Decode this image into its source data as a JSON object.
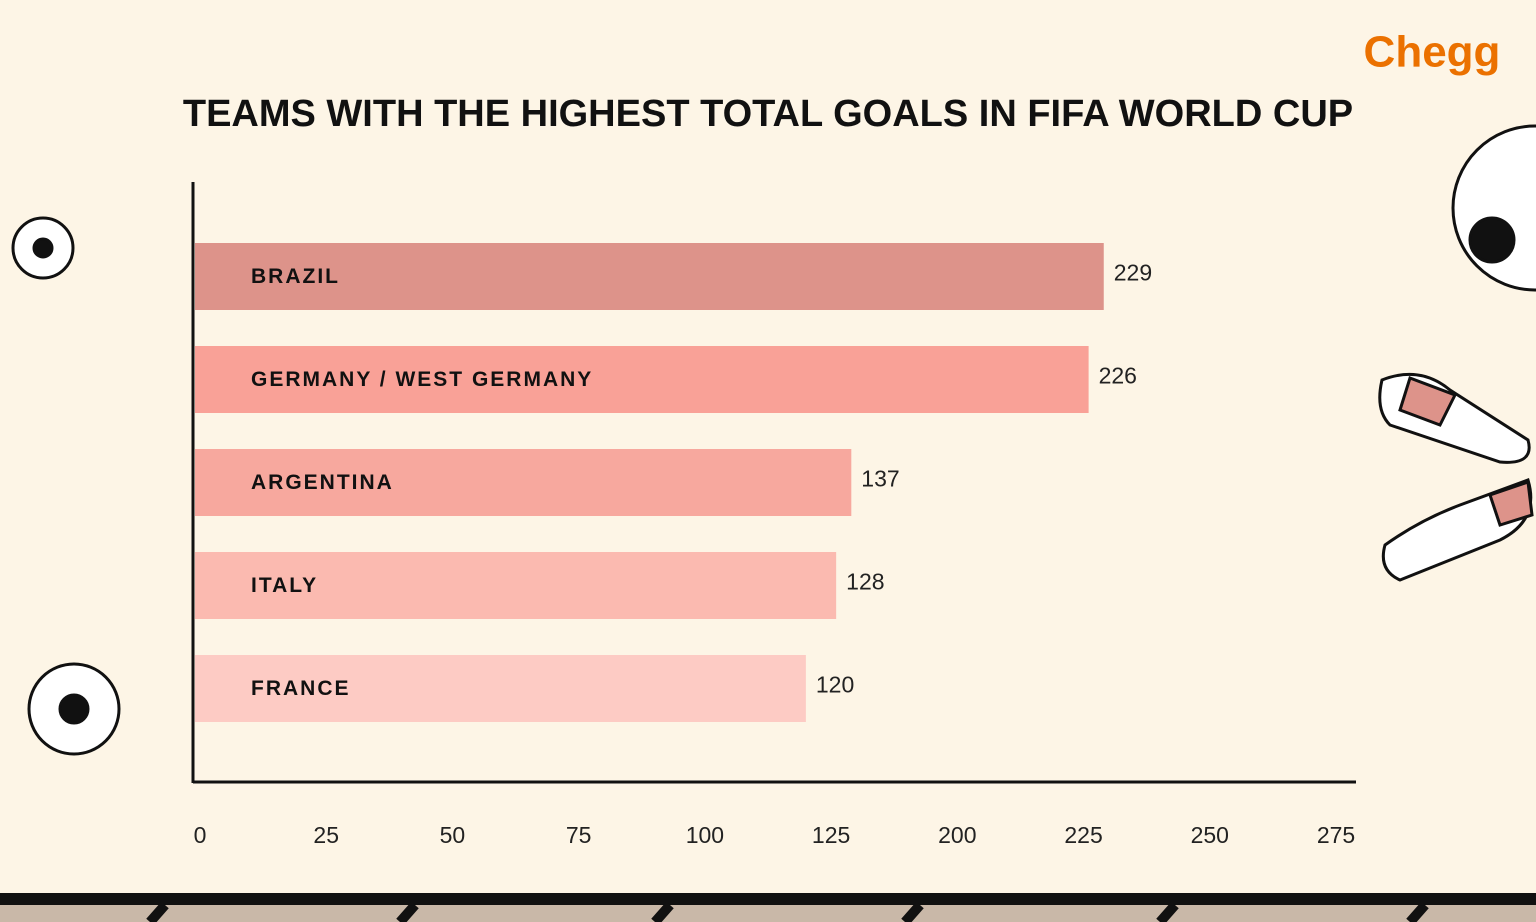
{
  "brand": "Chegg",
  "chart_data": {
    "type": "bar",
    "orientation": "horizontal",
    "title": "TEAMS WITH THE HIGHEST TOTAL GOALS IN FIFA WORLD CUP",
    "categories": [
      "BRAZIL",
      "GERMANY / WEST GERMANY",
      "ARGENTINA",
      "ITALY",
      "FRANCE"
    ],
    "values": [
      229,
      226,
      137,
      128,
      120
    ],
    "colors": [
      "#dd938a",
      "#f9a197",
      "#f7a89e",
      "#fbbab0",
      "#fdcbc4"
    ],
    "xlim": [
      0,
      275
    ],
    "xticks": [
      0,
      25,
      50,
      75,
      100,
      125,
      200,
      225,
      250,
      275
    ],
    "ticks_evenly_spaced": true
  }
}
